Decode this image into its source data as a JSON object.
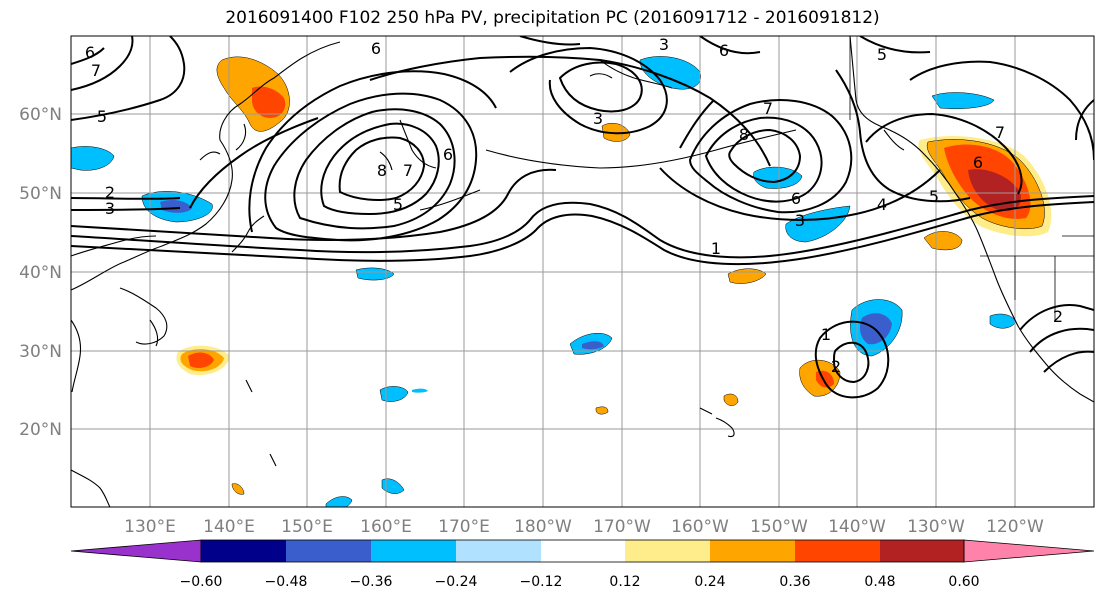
{
  "title": "2016091400 F102 250 hPa PV, precipitation PC (2016091712 - 2016091812)",
  "lat_labels": [
    "60°N",
    "50°N",
    "40°N",
    "30°N",
    "20°N"
  ],
  "lon_labels": [
    "130°E",
    "140°E",
    "150°E",
    "160°E",
    "170°E",
    "180°W",
    "170°W",
    "160°W",
    "150°W",
    "140°W",
    "130°W",
    "120°W"
  ],
  "colorbar": {
    "colors": [
      "#9932cc",
      "#00008b",
      "#3a5fcd",
      "#00bfff",
      "#b0e2ff",
      "#ffffff",
      "#ffec8b",
      "#ffa500",
      "#ff4500",
      "#b22222",
      "#ff82ab"
    ],
    "tick_labels": [
      "−0.60",
      "−0.48",
      "−0.36",
      "−0.24",
      "−0.12",
      "0.12",
      "0.24",
      "0.36",
      "0.48",
      "0.60"
    ]
  },
  "contour_labels": [
    {
      "id": "c1",
      "text": "6"
    },
    {
      "id": "c2",
      "text": "7"
    },
    {
      "id": "c3",
      "text": "5"
    },
    {
      "id": "c4",
      "text": "2"
    },
    {
      "id": "c5",
      "text": "3"
    },
    {
      "id": "c6",
      "text": "6"
    },
    {
      "id": "c7",
      "text": "8"
    },
    {
      "id": "c8",
      "text": "7"
    },
    {
      "id": "c9",
      "text": "6"
    },
    {
      "id": "c10",
      "text": "5"
    },
    {
      "id": "c11",
      "text": "3"
    },
    {
      "id": "c12",
      "text": "6"
    },
    {
      "id": "c13",
      "text": "5"
    },
    {
      "id": "c14",
      "text": "3"
    },
    {
      "id": "c15",
      "text": "7"
    },
    {
      "id": "c16",
      "text": "8"
    },
    {
      "id": "c17",
      "text": "6"
    },
    {
      "id": "c18",
      "text": "3"
    },
    {
      "id": "c19",
      "text": "4"
    },
    {
      "id": "c20",
      "text": "1"
    },
    {
      "id": "c21",
      "text": "5"
    },
    {
      "id": "c22",
      "text": "7"
    },
    {
      "id": "c23",
      "text": "6"
    },
    {
      "id": "c24",
      "text": "1"
    },
    {
      "id": "c25",
      "text": "2"
    },
    {
      "id": "c26",
      "text": "2"
    }
  ]
}
